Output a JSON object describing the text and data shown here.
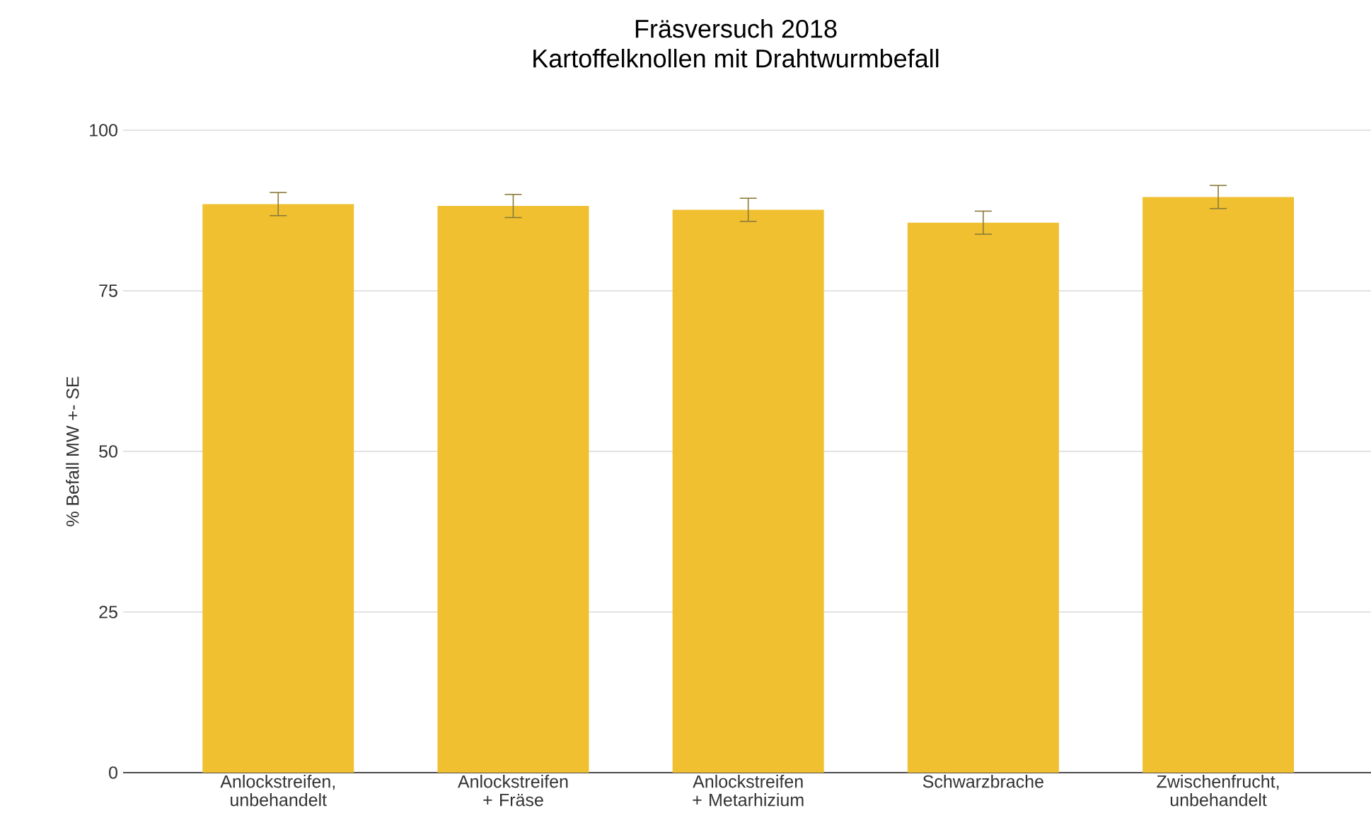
{
  "chart_data": {
    "type": "bar",
    "title": "Fräsversuch 2018",
    "subtitle": "Kartoffelknollen mit Drahtwurmbefall",
    "ylabel": "% Befall MW +- SE",
    "categories": [
      "Anlockstreifen, unbehandelt",
      "Anlockstreifen + Fräse",
      "Anlockstreifen + Metarhizium",
      "Schwarzbrache",
      "Zwischenfrucht, unbehandelt"
    ],
    "values": [
      88.5,
      88.2,
      87.6,
      85.6,
      89.6
    ],
    "errors": [
      1.8,
      1.8,
      1.8,
      1.8,
      1.8
    ],
    "color": "#f0c030",
    "ylim": [
      0,
      100
    ],
    "yticks": [
      0,
      25,
      50,
      75,
      100
    ],
    "grid": "y"
  }
}
